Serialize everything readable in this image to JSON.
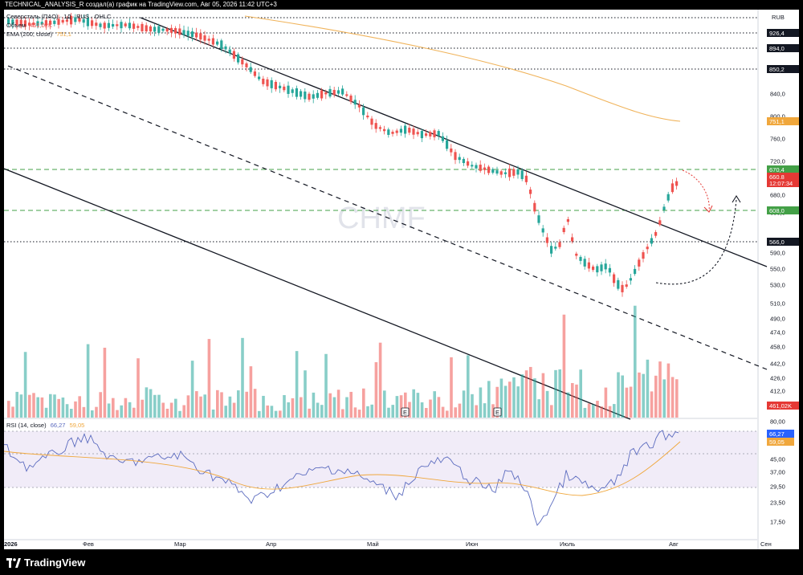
{
  "header": {
    "caption": "TECHNICAL_ANALYSIS_R создал(а) график на TradingView.com, Авг 05, 2026 11:42 UTC+3"
  },
  "legend": {
    "symbol_line": "Северсталь (ПАО) · 1Д · RUS · OHLC",
    "volume_label": "Объем",
    "volume_value": "461,02K",
    "ema_label": "EMA (200, close)",
    "ema_value": "751,1",
    "rsi_label": "RSI (14, close)",
    "rsi_value": "66,27",
    "rsi_ma_value": "59,05"
  },
  "price_axis": {
    "currency": "RUB",
    "ticks": [
      "840,0",
      "800,0",
      "760,0",
      "720,0",
      "680,0",
      "650,0",
      "630,0",
      "590,0",
      "550,0",
      "530,0",
      "510,0",
      "490,0",
      "474,0",
      "458,0",
      "442,0",
      "426,0",
      "412,0",
      "398,0"
    ],
    "level_badges": [
      {
        "label": "926,4",
        "kind": "dark"
      },
      {
        "label": "894,0",
        "kind": "dark"
      },
      {
        "label": "850,2",
        "kind": "dark"
      },
      {
        "label": "751,1",
        "kind": "orange"
      },
      {
        "label": "670,4",
        "kind": "green"
      },
      {
        "label": "660,8",
        "kind": "red"
      },
      {
        "label": "12:07:34",
        "kind": "red"
      },
      {
        "label": "608,0",
        "kind": "green"
      },
      {
        "label": "566,0",
        "kind": "dark"
      },
      {
        "label": "461,02K",
        "kind": "red"
      }
    ]
  },
  "rsi_axis": {
    "ticks": [
      "80,00",
      "45,00",
      "37,00",
      "29,50",
      "23,50",
      "17,50"
    ],
    "badges": [
      {
        "label": "66,27",
        "kind": "blue"
      },
      {
        "label": "59,05",
        "kind": "orange"
      }
    ]
  },
  "time_axis": {
    "labels": [
      "2026",
      "Фев",
      "Мар",
      "Апр",
      "Май",
      "Июн",
      "Июль",
      "Авг",
      "Сен"
    ]
  },
  "watermark": "CHMF",
  "earnings_markers": [
    "E",
    "E"
  ],
  "colors": {
    "up": "#26a69a",
    "down": "#ef5350",
    "ema": "#f0b35a",
    "rsi": "#5b6bbf",
    "rsi_ma": "#f0a73c",
    "green_line": "#43a047",
    "dark": "#131722"
  },
  "footer": {
    "brand": "TradingView"
  }
}
